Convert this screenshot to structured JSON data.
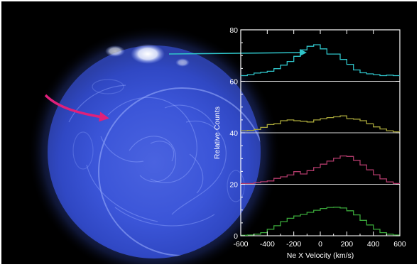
{
  "chart_data": {
    "type": "line",
    "step": true,
    "xlabel": "Ne X Velocity  (km/s)",
    "ylabel": "Relative Counts",
    "xlim": [
      -600,
      600
    ],
    "ylim": [
      0,
      80
    ],
    "x_ticks": [
      -600,
      -400,
      -200,
      0,
      200,
      400,
      600
    ],
    "y_ticks": [
      0,
      20,
      40,
      60,
      80
    ],
    "baselines": [
      60,
      40,
      20,
      0
    ],
    "bin_edges": [
      -600,
      -550,
      -500,
      -450,
      -400,
      -350,
      -300,
      -250,
      -200,
      -150,
      -100,
      -50,
      0,
      50,
      100,
      150,
      200,
      250,
      300,
      350,
      400,
      450,
      500,
      550,
      600
    ],
    "series": [
      {
        "color": "#2fc4c9",
        "baseline": 60,
        "values": [
          62.2,
          62.6,
          63.2,
          63.5,
          63.9,
          64.9,
          66.3,
          67.7,
          69.7,
          72.2,
          73.6,
          74.2,
          72.6,
          70.6,
          70.6,
          68.5,
          66.6,
          64.4,
          63.3,
          62.9,
          62.6,
          62.2,
          62.4,
          62.2
        ]
      },
      {
        "color": "#a8a63a",
        "baseline": 40,
        "values": [
          40.8,
          40.9,
          41.3,
          42.1,
          43.2,
          43.5,
          44.7,
          45.0,
          44.7,
          44.5,
          44.2,
          45.0,
          45.5,
          45.9,
          46.2,
          46.6,
          45.5,
          45.3,
          44.7,
          43.5,
          42.3,
          41.5,
          40.8,
          40.4
        ]
      },
      {
        "color": "#b03a6a",
        "baseline": 20,
        "values": [
          20.3,
          20.3,
          20.6,
          21.0,
          21.3,
          22.3,
          22.9,
          23.6,
          24.9,
          24.0,
          25.3,
          26.5,
          27.8,
          29.0,
          30.1,
          31.0,
          30.8,
          29.3,
          27.5,
          25.6,
          23.7,
          22.1,
          20.9,
          20.3
        ]
      },
      {
        "color": "#3aa83a",
        "baseline": 0,
        "values": [
          0.2,
          0.3,
          0.6,
          1.2,
          2.5,
          3.9,
          5.5,
          6.8,
          7.7,
          8.3,
          9.1,
          9.9,
          10.6,
          11.0,
          11.1,
          10.8,
          9.7,
          8.1,
          6.0,
          4.2,
          2.5,
          1.2,
          0.6,
          0.3
        ]
      }
    ],
    "arrow_colors": {
      "pointer": "#2fc4c9",
      "rotation": "#e0207a"
    }
  }
}
